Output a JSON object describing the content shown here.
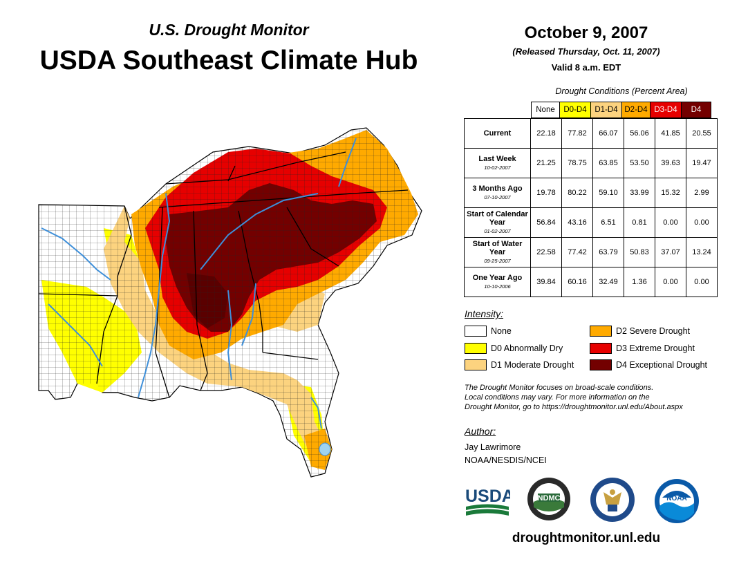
{
  "header": {
    "subtitle": "U.S. Drought Monitor",
    "title": "USDA Southeast Climate Hub",
    "date": "October 9, 2007",
    "released": "(Released Thursday, Oct. 11, 2007)",
    "valid": "Valid 8 a.m. EDT"
  },
  "table": {
    "caption": "Drought Conditions (Percent Area)",
    "columns": [
      "None",
      "D0-D4",
      "D1-D4",
      "D2-D4",
      "D3-D4",
      "D4"
    ],
    "column_colors": [
      "#ffffff",
      "#ffff00",
      "#fcd37f",
      "#ffaa00",
      "#e60000",
      "#730000"
    ],
    "rows": [
      {
        "label": "Current",
        "date": "",
        "values": [
          "22.18",
          "77.82",
          "66.07",
          "56.06",
          "41.85",
          "20.55"
        ]
      },
      {
        "label": "Last Week",
        "date": "10-02-2007",
        "values": [
          "21.25",
          "78.75",
          "63.85",
          "53.50",
          "39.63",
          "19.47"
        ]
      },
      {
        "label": "3 Months Ago",
        "date": "07-10-2007",
        "values": [
          "19.78",
          "80.22",
          "59.10",
          "33.99",
          "15.32",
          "2.99"
        ]
      },
      {
        "label": "Start of Calendar Year",
        "date": "01-02-2007",
        "values": [
          "56.84",
          "43.16",
          "6.51",
          "0.81",
          "0.00",
          "0.00"
        ]
      },
      {
        "label": "Start of Water Year",
        "date": "09-25-2007",
        "values": [
          "22.58",
          "77.42",
          "63.79",
          "50.83",
          "37.07",
          "13.24"
        ]
      },
      {
        "label": "One Year Ago",
        "date": "10-10-2006",
        "values": [
          "39.84",
          "60.16",
          "32.49",
          "1.36",
          "0.00",
          "0.00"
        ]
      }
    ]
  },
  "legend": {
    "title": "Intensity:",
    "items": [
      {
        "label": "None",
        "color": "#ffffff"
      },
      {
        "label": "D0 Abnormally Dry",
        "color": "#ffff00"
      },
      {
        "label": "D1 Moderate Drought",
        "color": "#fcd37f"
      },
      {
        "label": "D2 Severe Drought",
        "color": "#ffaa00"
      },
      {
        "label": "D3 Extreme Drought",
        "color": "#e60000"
      },
      {
        "label": "D4 Exceptional Drought",
        "color": "#730000"
      }
    ]
  },
  "note": {
    "line1": "The Drought Monitor focuses on broad-scale conditions.",
    "line2": "Local conditions may vary. For more information on the",
    "line3": "Drought Monitor, go to https://droughtmonitor.unl.edu/About.aspx"
  },
  "author": {
    "heading": "Author:",
    "name": "Jay Lawrimore",
    "org": "NOAA/NESDIS/NCEI"
  },
  "logos": {
    "usda": "USDA",
    "ndmc": "NDMC",
    "noaa": "NOAA"
  },
  "footer": {
    "site": "droughtmonitor.unl.edu"
  }
}
